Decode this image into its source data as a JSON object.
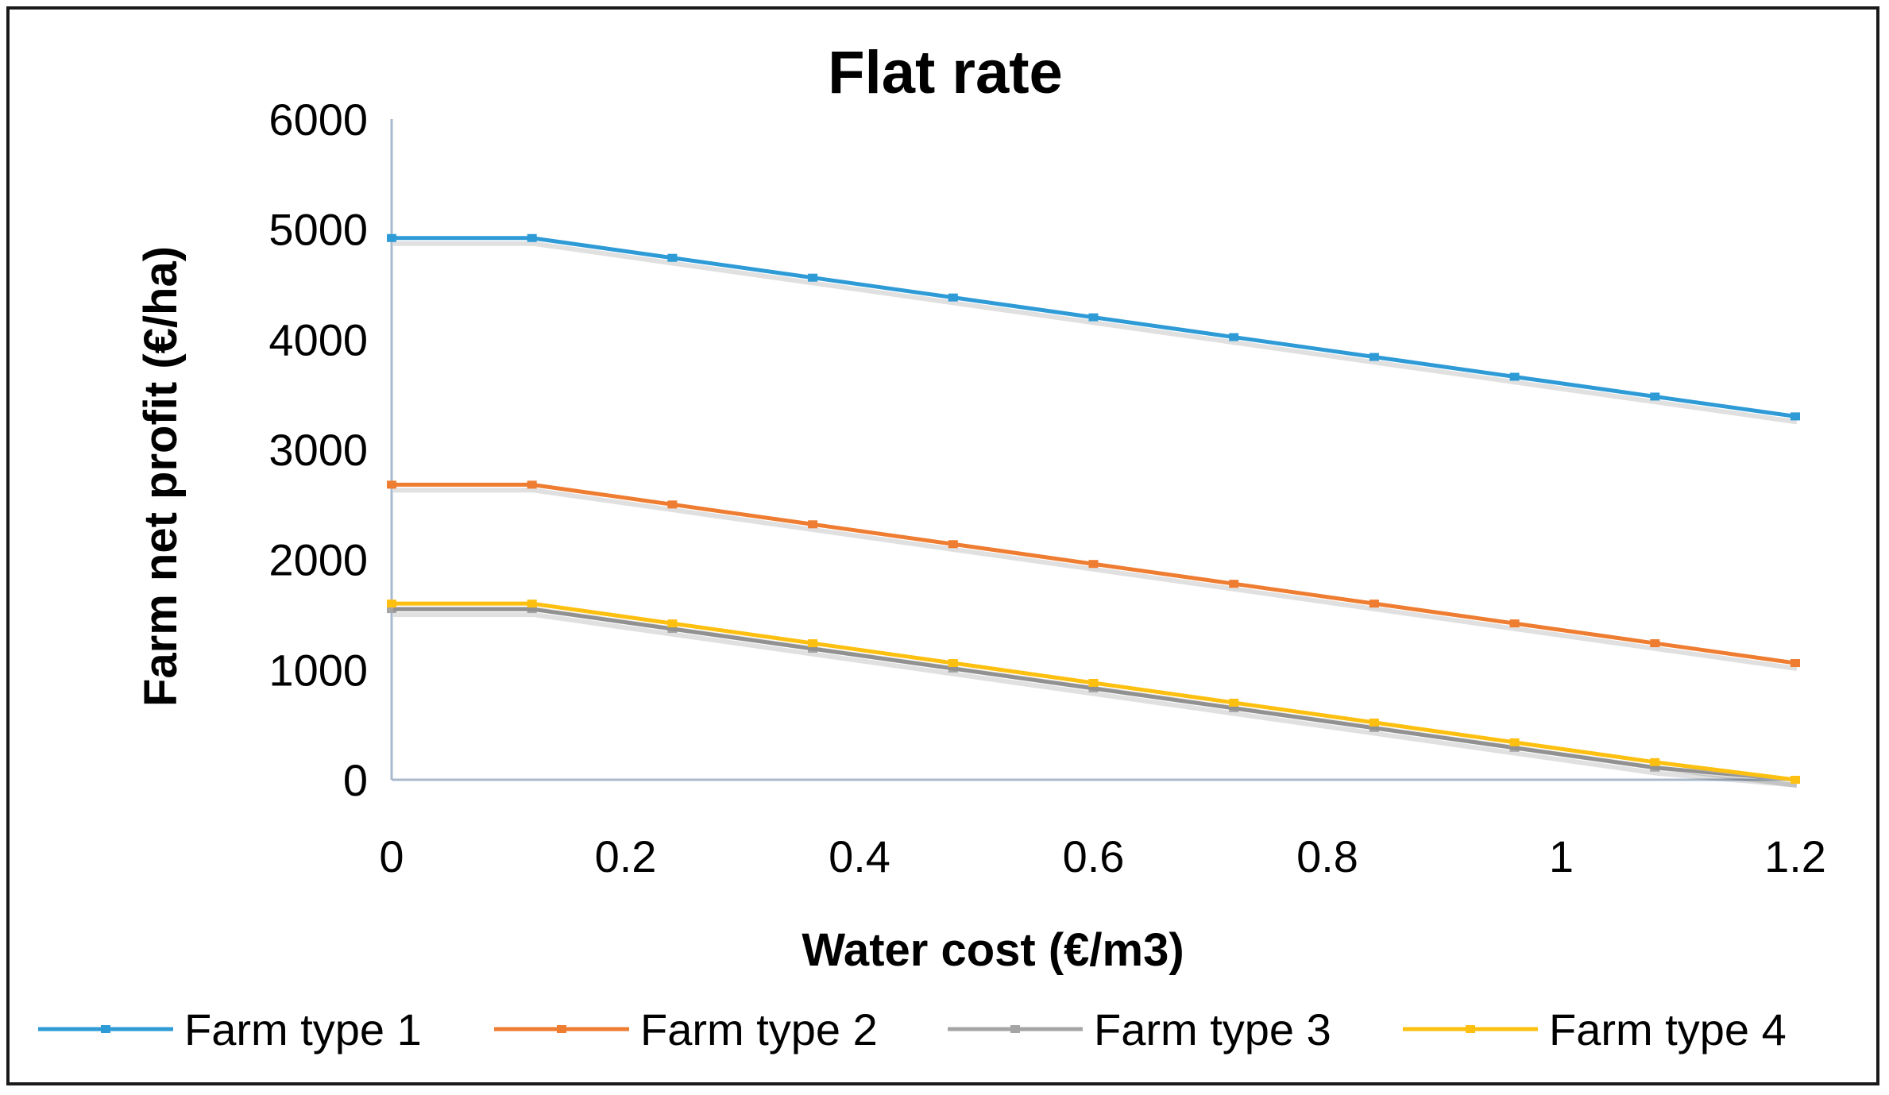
{
  "chart_data": {
    "type": "line",
    "title": "Flat rate",
    "xlabel": "Water cost (€/m3)",
    "ylabel": "Farm net profit (€/ha)",
    "xlim": [
      0,
      1.2
    ],
    "ylim": [
      0,
      6000
    ],
    "xticks": [
      0,
      0.2,
      0.4,
      0.6,
      0.8,
      1,
      1.2
    ],
    "xtick_labels": [
      "0",
      "0.2",
      "0.4",
      "0.6",
      "0.8",
      "1",
      "1.2"
    ],
    "yticks": [
      0,
      1000,
      2000,
      3000,
      4000,
      5000,
      6000
    ],
    "ytick_labels": [
      "0",
      "1000",
      "2000",
      "3000",
      "4000",
      "5000",
      "6000"
    ],
    "grid": false,
    "legend_position": "bottom",
    "x": [
      0,
      0.12,
      0.24,
      0.36,
      0.48,
      0.6,
      0.72,
      0.84,
      0.96,
      1.08,
      1.2
    ],
    "series": [
      {
        "name": "Farm type 1",
        "color": "#2E9BD6",
        "values": [
          4920,
          4920,
          4740,
          4560,
          4380,
          4200,
          4020,
          3840,
          3660,
          3480,
          3300
        ]
      },
      {
        "name": "Farm type 2",
        "color": "#EE7D31",
        "values": [
          2680,
          2680,
          2500,
          2320,
          2140,
          1960,
          1780,
          1600,
          1420,
          1240,
          1060
        ]
      },
      {
        "name": "Farm type 3",
        "color": "#A5A5A5",
        "values": [
          1550,
          1550,
          1370,
          1190,
          1010,
          830,
          650,
          470,
          290,
          110,
          0
        ]
      },
      {
        "name": "Farm type 4",
        "color": "#FDC010",
        "values": [
          1600,
          1600,
          1420,
          1240,
          1060,
          880,
          700,
          520,
          340,
          160,
          0
        ]
      }
    ]
  }
}
